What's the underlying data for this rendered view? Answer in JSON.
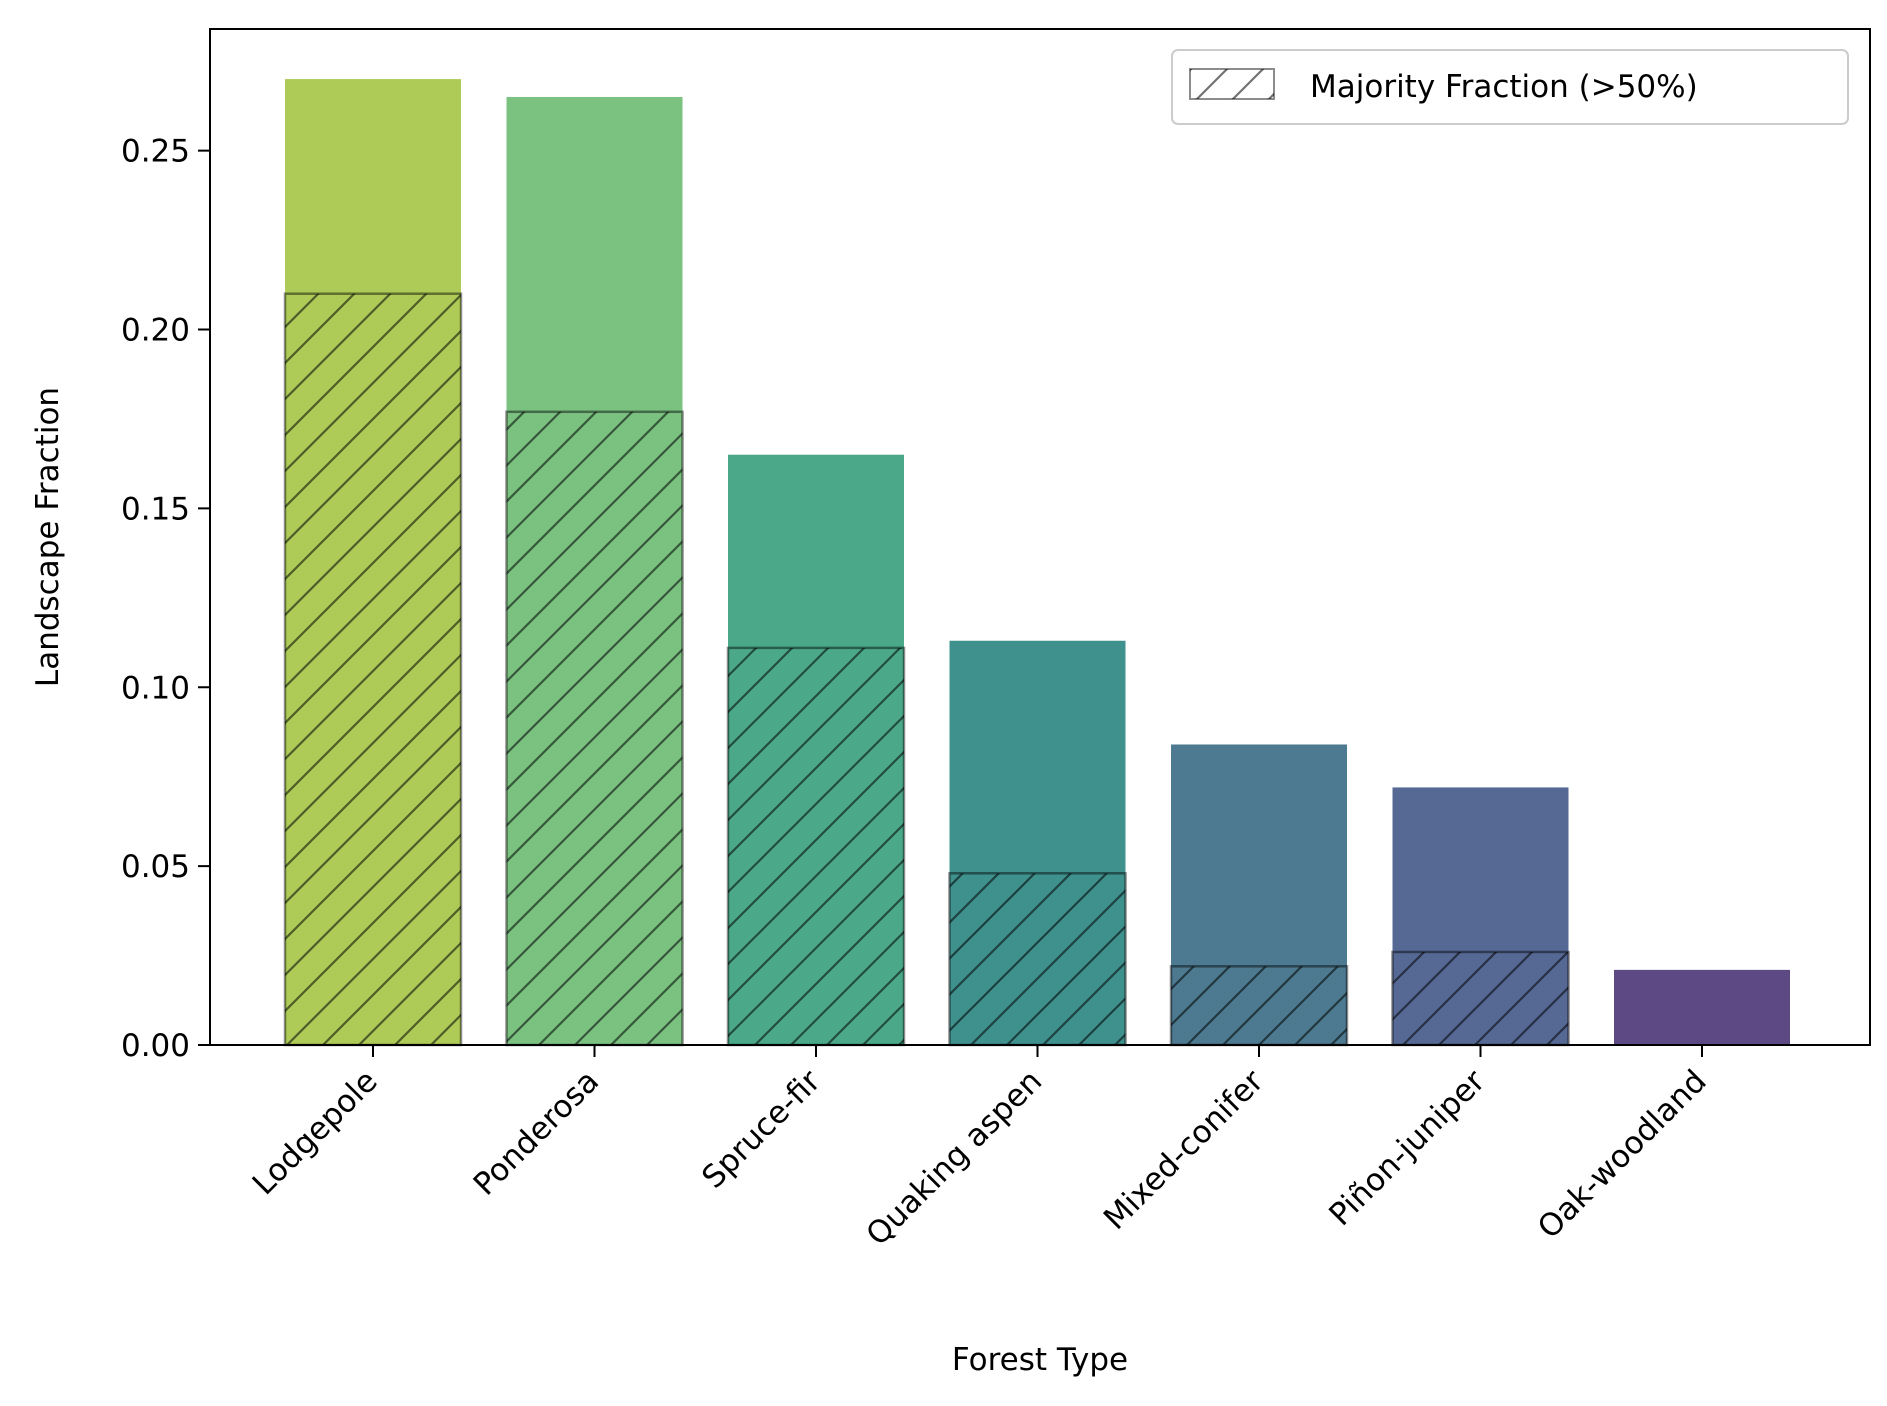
{
  "chart_data": {
    "type": "bar",
    "title": "",
    "xlabel": "Forest Type",
    "ylabel": "Landscape Fraction",
    "categories": [
      "Lodgepole",
      "Ponderosa",
      "Spruce-fir",
      "Quaking aspen",
      "Mixed-conifer",
      "Piñon-juniper",
      "Oak-woodland"
    ],
    "series": [
      {
        "values": [
          0.27,
          0.265,
          0.165,
          0.113,
          0.084,
          0.072,
          0.021
        ],
        "colors": [
          "#a5c545",
          "#6dbb72",
          "#37a07d",
          "#2a8582",
          "#3a6b85",
          "#445988",
          "#4b3677"
        ]
      },
      {
        "name": "Majority Fraction (>50%)",
        "values": [
          0.21,
          0.177,
          0.111,
          0.048,
          0.022,
          0.026,
          0.0
        ],
        "pattern": "hatch"
      }
    ],
    "ylim": [
      0,
      0.284
    ],
    "yticks": [
      "0.00",
      "0.05",
      "0.10",
      "0.15",
      "0.20",
      "0.25"
    ],
    "legend_position": "top-right",
    "grid": false
  }
}
